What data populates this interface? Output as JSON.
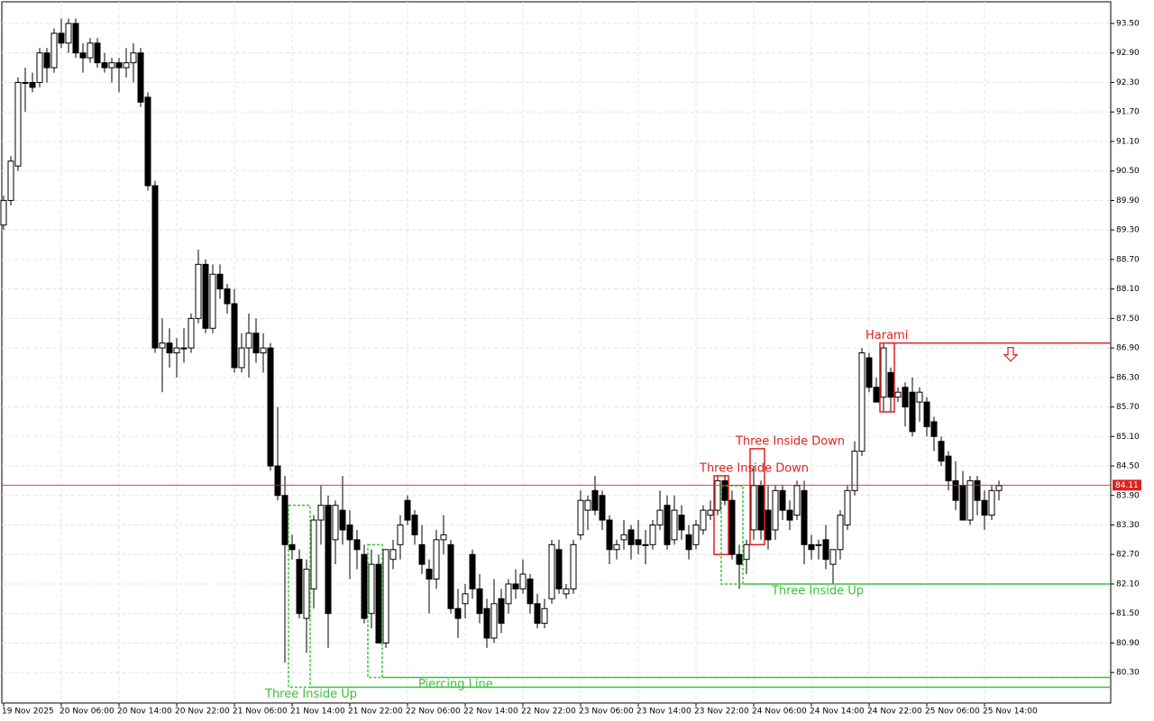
{
  "chart_data": {
    "type": "candlestick",
    "price_line": {
      "value": 84.11,
      "label": "84.11",
      "color": "#d22"
    },
    "ylim": [
      79.68,
      93.94
    ],
    "yticks": [
      {
        "value": 93.5,
        "label": "93.50"
      },
      {
        "value": 92.9,
        "label": "92.90"
      },
      {
        "value": 92.3,
        "label": "92.30"
      },
      {
        "value": 91.7,
        "label": "91.70"
      },
      {
        "value": 91.1,
        "label": "91.10"
      },
      {
        "value": 90.5,
        "label": "90.50"
      },
      {
        "value": 89.9,
        "label": "89.90"
      },
      {
        "value": 89.3,
        "label": "89.30"
      },
      {
        "value": 88.7,
        "label": "88.70"
      },
      {
        "value": 88.1,
        "label": "88.10"
      },
      {
        "value": 87.5,
        "label": "87.50"
      },
      {
        "value": 86.9,
        "label": "86.90"
      },
      {
        "value": 86.3,
        "label": "86.30"
      },
      {
        "value": 85.7,
        "label": "85.70"
      },
      {
        "value": 85.1,
        "label": "85.10"
      },
      {
        "value": 84.5,
        "label": "84.50"
      },
      {
        "value": 83.9,
        "label": "83.90"
      },
      {
        "value": 83.3,
        "label": "83.30"
      },
      {
        "value": 82.7,
        "label": "82.70"
      },
      {
        "value": 82.1,
        "label": "82.10"
      },
      {
        "value": 81.5,
        "label": "81.50"
      },
      {
        "value": 80.9,
        "label": "80.90"
      },
      {
        "value": 80.3,
        "label": "80.30"
      }
    ],
    "grid": true,
    "categories": [
      "19 Nov 2025",
      null,
      null,
      null,
      null,
      null,
      null,
      null,
      "20 Nov 06:00",
      null,
      null,
      null,
      null,
      null,
      null,
      null,
      "20 Nov 14:00",
      null,
      null,
      null,
      null,
      null,
      null,
      null,
      "20 Nov 22:00",
      null,
      null,
      null,
      null,
      null,
      null,
      null,
      "21 Nov 06:00",
      null,
      null,
      null,
      null,
      null,
      null,
      null,
      "21 Nov 14:00",
      null,
      null,
      null,
      null,
      null,
      null,
      null,
      "21 Nov 22:00",
      null,
      null,
      null,
      null,
      null,
      null,
      null,
      "22 Nov 06:00",
      null,
      null,
      null,
      null,
      null,
      null,
      null,
      "22 Nov 14:00",
      null,
      null,
      null,
      null,
      null,
      null,
      null,
      "22 Nov 22:00",
      null,
      null,
      null,
      null,
      null,
      null,
      null,
      "23 Nov 06:00",
      null,
      null,
      null,
      null,
      null,
      null,
      null,
      "23 Nov 14:00",
      null,
      null,
      null,
      null,
      null,
      null,
      null,
      "23 Nov 22:00",
      null,
      null,
      null,
      null,
      null,
      null,
      null,
      "24 Nov 06:00",
      null,
      null,
      null,
      null,
      null,
      null,
      null,
      "24 Nov 14:00",
      null,
      null,
      null,
      null,
      null,
      null,
      null,
      "24 Nov 22:00",
      null,
      null,
      null,
      null,
      null,
      null,
      null,
      "25 Nov 06:00",
      null,
      null,
      null,
      null,
      null,
      null,
      null,
      "25 Nov 14:00",
      null,
      null
    ],
    "candles": [
      [
        89.4,
        90.0,
        89.3,
        89.9
      ],
      [
        89.9,
        90.8,
        89.8,
        90.7
      ],
      [
        90.6,
        92.4,
        90.5,
        92.3
      ],
      [
        92.3,
        92.6,
        91.7,
        92.3
      ],
      [
        92.3,
        92.5,
        92.1,
        92.2
      ],
      [
        92.3,
        93.0,
        92.2,
        92.9
      ],
      [
        92.9,
        93.0,
        92.3,
        92.6
      ],
      [
        92.6,
        93.4,
        92.5,
        93.3
      ],
      [
        93.3,
        93.6,
        93.0,
        93.1
      ],
      [
        93.1,
        93.6,
        92.9,
        93.5
      ],
      [
        93.5,
        93.6,
        92.8,
        92.9
      ],
      [
        92.9,
        93.1,
        92.5,
        92.8
      ],
      [
        92.8,
        93.2,
        92.7,
        93.1
      ],
      [
        93.1,
        93.2,
        92.6,
        92.7
      ],
      [
        92.7,
        92.9,
        92.5,
        92.6
      ],
      [
        92.6,
        92.8,
        92.3,
        92.7
      ],
      [
        92.7,
        92.8,
        92.1,
        92.6
      ],
      [
        92.6,
        93.0,
        92.4,
        92.7
      ],
      [
        92.7,
        93.1,
        92.3,
        92.9
      ],
      [
        92.9,
        93.0,
        91.8,
        91.9
      ],
      [
        92.0,
        92.1,
        90.1,
        90.2
      ],
      [
        90.2,
        90.3,
        86.8,
        86.9
      ],
      [
        86.9,
        87.5,
        86.0,
        87.0
      ],
      [
        87.0,
        87.3,
        86.5,
        86.8
      ],
      [
        86.8,
        87.1,
        86.3,
        86.9
      ],
      [
        86.9,
        87.3,
        86.6,
        86.9
      ],
      [
        86.9,
        87.6,
        86.8,
        87.5
      ],
      [
        87.5,
        88.9,
        87.4,
        88.6
      ],
      [
        88.6,
        88.7,
        87.2,
        87.3
      ],
      [
        87.3,
        88.6,
        87.2,
        88.4
      ],
      [
        88.4,
        88.6,
        87.9,
        88.1
      ],
      [
        88.1,
        88.2,
        87.6,
        87.8
      ],
      [
        87.8,
        88.1,
        86.4,
        86.5
      ],
      [
        86.5,
        87.2,
        86.4,
        86.9
      ],
      [
        86.9,
        87.6,
        86.3,
        87.2
      ],
      [
        87.2,
        87.5,
        86.6,
        86.8
      ],
      [
        86.8,
        87.2,
        86.4,
        86.9
      ],
      [
        86.9,
        87.0,
        84.4,
        84.5
      ],
      [
        84.5,
        85.7,
        83.8,
        83.9
      ],
      [
        83.9,
        84.3,
        80.5,
        82.9
      ],
      [
        82.9,
        83.1,
        82.6,
        82.8
      ],
      [
        82.6,
        82.8,
        81.4,
        81.5
      ],
      [
        81.4,
        82.6,
        80.7,
        82.4
      ],
      [
        82.0,
        83.5,
        81.6,
        83.4
      ],
      [
        83.4,
        84.1,
        82.9,
        83.7
      ],
      [
        83.7,
        83.9,
        80.8,
        81.5
      ],
      [
        83.0,
        83.8,
        82.5,
        83.7
      ],
      [
        83.6,
        84.3,
        82.9,
        83.2
      ],
      [
        83.3,
        83.6,
        82.2,
        83.0
      ],
      [
        83.0,
        83.2,
        82.4,
        82.8
      ],
      [
        82.7,
        82.9,
        81.3,
        81.4
      ],
      [
        81.5,
        82.8,
        81.2,
        82.5
      ],
      [
        82.5,
        82.7,
        80.9,
        80.9
      ],
      [
        80.9,
        82.8,
        80.8,
        82.8
      ],
      [
        82.6,
        83.0,
        82.4,
        82.8
      ],
      [
        82.9,
        83.5,
        82.6,
        83.3
      ],
      [
        83.8,
        83.9,
        83.3,
        83.4
      ],
      [
        83.5,
        83.6,
        82.9,
        83.1
      ],
      [
        82.9,
        83.3,
        82.3,
        82.5
      ],
      [
        82.4,
        82.6,
        81.5,
        82.2
      ],
      [
        82.2,
        83.2,
        82.0,
        83.0
      ],
      [
        83.0,
        83.5,
        82.7,
        83.1
      ],
      [
        82.9,
        83.0,
        81.5,
        81.6
      ],
      [
        81.6,
        82.0,
        81.0,
        81.4
      ],
      [
        81.7,
        82.1,
        81.4,
        81.9
      ],
      [
        82.7,
        82.8,
        81.8,
        82.0
      ],
      [
        82.0,
        82.3,
        81.3,
        81.5
      ],
      [
        81.6,
        81.8,
        80.8,
        81.0
      ],
      [
        81.0,
        82.2,
        80.9,
        81.7
      ],
      [
        81.8,
        82.0,
        81.1,
        81.3
      ],
      [
        81.7,
        82.2,
        81.5,
        82.1
      ],
      [
        82.1,
        82.4,
        81.8,
        82.0
      ],
      [
        82.0,
        82.6,
        81.9,
        82.3
      ],
      [
        82.2,
        82.3,
        81.5,
        81.7
      ],
      [
        81.7,
        81.9,
        81.2,
        81.3
      ],
      [
        81.3,
        81.8,
        81.2,
        81.6
      ],
      [
        81.8,
        83.0,
        81.7,
        82.9
      ],
      [
        82.8,
        83.0,
        81.9,
        82.0
      ],
      [
        81.9,
        82.1,
        81.8,
        82.0
      ],
      [
        82.0,
        83.0,
        81.9,
        82.9
      ],
      [
        83.1,
        84.0,
        83.0,
        83.8
      ],
      [
        83.6,
        83.9,
        83.2,
        83.8
      ],
      [
        84.0,
        84.3,
        83.5,
        83.6
      ],
      [
        83.9,
        84.0,
        83.2,
        83.4
      ],
      [
        83.4,
        83.5,
        82.5,
        82.8
      ],
      [
        82.8,
        83.0,
        82.6,
        82.9
      ],
      [
        83.0,
        83.4,
        82.8,
        83.1
      ],
      [
        83.2,
        83.3,
        82.6,
        82.9
      ],
      [
        83.0,
        83.4,
        82.7,
        82.9
      ],
      [
        82.9,
        83.2,
        82.5,
        82.9
      ],
      [
        82.9,
        83.4,
        82.8,
        83.3
      ],
      [
        83.3,
        84.0,
        83.2,
        83.6
      ],
      [
        83.7,
        83.9,
        82.8,
        82.9
      ],
      [
        83.0,
        83.9,
        82.9,
        83.6
      ],
      [
        83.5,
        83.7,
        83.0,
        83.2
      ],
      [
        83.1,
        83.3,
        82.6,
        82.8
      ],
      [
        82.9,
        83.4,
        82.8,
        83.3
      ],
      [
        83.2,
        83.7,
        83.1,
        83.6
      ],
      [
        83.5,
        83.8,
        83.4,
        83.6
      ],
      [
        83.6,
        84.3,
        83.5,
        84.2
      ],
      [
        84.2,
        84.3,
        83.7,
        83.8
      ],
      [
        83.8,
        84.0,
        82.6,
        82.7
      ],
      [
        82.7,
        82.9,
        82.0,
        82.5
      ],
      [
        82.6,
        83.0,
        82.3,
        82.9
      ],
      [
        83.2,
        84.5,
        83.0,
        84.1
      ],
      [
        84.1,
        84.2,
        83.0,
        83.2
      ],
      [
        83.6,
        84.1,
        82.8,
        83.0
      ],
      [
        83.2,
        84.1,
        83.0,
        84.0
      ],
      [
        84.0,
        84.1,
        83.4,
        83.6
      ],
      [
        83.6,
        83.8,
        83.2,
        83.4
      ],
      [
        83.5,
        84.2,
        83.4,
        84.1
      ],
      [
        84.0,
        84.2,
        82.5,
        82.9
      ],
      [
        82.9,
        83.1,
        82.6,
        82.8
      ],
      [
        82.9,
        83.0,
        82.6,
        82.9
      ],
      [
        83.0,
        83.3,
        82.4,
        82.6
      ],
      [
        82.5,
        82.8,
        82.1,
        82.8
      ],
      [
        82.8,
        83.6,
        82.6,
        83.5
      ],
      [
        83.3,
        84.1,
        83.2,
        84.0
      ],
      [
        84.0,
        85.0,
        83.9,
        84.8
      ],
      [
        84.8,
        86.9,
        84.7,
        86.8
      ],
      [
        86.7,
        86.8,
        86.0,
        86.1
      ],
      [
        86.1,
        86.3,
        85.8,
        85.8
      ],
      [
        85.9,
        87.0,
        85.6,
        86.9
      ],
      [
        86.4,
        86.5,
        85.6,
        85.9
      ],
      [
        85.9,
        86.1,
        85.8,
        86.0
      ],
      [
        86.1,
        86.2,
        85.3,
        85.7
      ],
      [
        86.0,
        86.3,
        85.1,
        85.2
      ],
      [
        85.8,
        86.1,
        85.4,
        86.0
      ],
      [
        85.8,
        85.9,
        85.1,
        85.3
      ],
      [
        85.4,
        85.5,
        84.8,
        85.1
      ],
      [
        85.0,
        85.1,
        84.5,
        84.6
      ],
      [
        84.7,
        84.8,
        84.0,
        84.2
      ],
      [
        84.2,
        84.6,
        83.6,
        83.8
      ],
      [
        84.1,
        84.4,
        83.4,
        83.4
      ],
      [
        83.4,
        84.3,
        83.3,
        84.2
      ],
      [
        84.2,
        84.3,
        83.5,
        83.8
      ],
      [
        83.8,
        84.0,
        83.2,
        83.5
      ],
      [
        83.5,
        84.1,
        83.4,
        84.0
      ],
      [
        84.0,
        84.2,
        83.8,
        84.1
      ]
    ],
    "patterns": [
      {
        "label": "Harami",
        "color": "#e02020",
        "candles": [
          122,
          123
        ],
        "high": 87.0,
        "low": 85.6,
        "level": 87.0,
        "signal": "down"
      },
      {
        "label": "Three Inside Down",
        "color": "#e02020",
        "candles": [
          99,
          100
        ],
        "high": 84.3,
        "low": 82.7
      },
      {
        "label": "Three Inside Down",
        "color": "#e02020",
        "candles": [
          104,
          105
        ],
        "high": 84.85,
        "low": 82.9
      },
      {
        "label": "Three Inside Up",
        "color": "#3cbf3c",
        "candles": [
          40,
          42
        ],
        "high": 83.7,
        "low": 80.0,
        "level": 80.0
      },
      {
        "label": "Piercing Line",
        "color": "#3cbf3c",
        "candles": [
          51,
          52
        ],
        "high": 82.9,
        "low": 80.2,
        "level": 80.2
      },
      {
        "label": "Three Inside Up",
        "color": "#3cbf3c",
        "candles": [
          100,
          102
        ],
        "high": 84.1,
        "low": 82.1,
        "level": 82.1
      }
    ]
  }
}
